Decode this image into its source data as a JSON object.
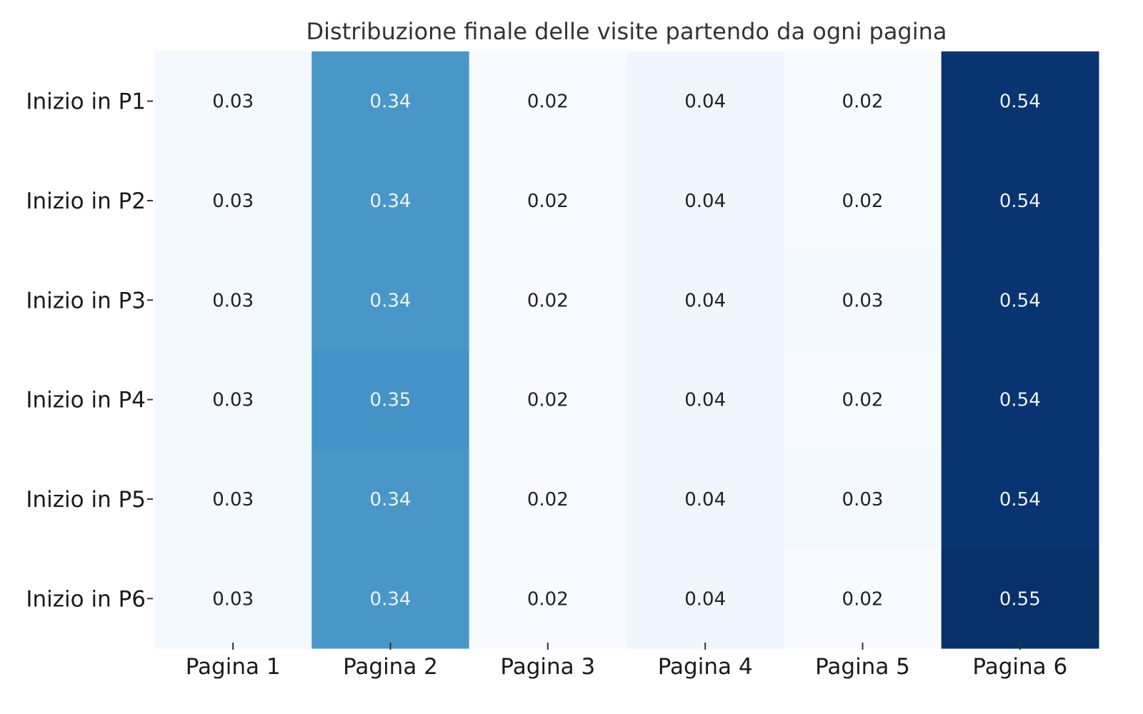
{
  "chart_data": {
    "type": "heatmap",
    "title": "Distribuzione finale delle visite partendo da ogni pagina",
    "xlabel": "",
    "ylabel": "",
    "x_categories": [
      "Pagina 1",
      "Pagina 2",
      "Pagina 3",
      "Pagina 4",
      "Pagina 5",
      "Pagina 6"
    ],
    "y_categories": [
      "Inizio in P1",
      "Inizio in P2",
      "Inizio in P3",
      "Inizio in P4",
      "Inizio in P5",
      "Inizio in P6"
    ],
    "values": [
      [
        0.03,
        0.34,
        0.02,
        0.04,
        0.02,
        0.54
      ],
      [
        0.03,
        0.34,
        0.02,
        0.04,
        0.02,
        0.54
      ],
      [
        0.03,
        0.34,
        0.02,
        0.04,
        0.03,
        0.54
      ],
      [
        0.03,
        0.35,
        0.02,
        0.04,
        0.02,
        0.54
      ],
      [
        0.03,
        0.34,
        0.02,
        0.04,
        0.03,
        0.54
      ],
      [
        0.03,
        0.34,
        0.02,
        0.04,
        0.02,
        0.55
      ]
    ],
    "colormap": "Blues",
    "colormap_stops": [
      "#f7fbff",
      "#deebf7",
      "#c6dbef",
      "#9ecae1",
      "#6baed6",
      "#4292c6",
      "#2171b5",
      "#08519c",
      "#08306b"
    ],
    "text_color_dark": "#222222",
    "text_color_light": "#f2f2f2",
    "colorbar": false,
    "grid": false
  }
}
